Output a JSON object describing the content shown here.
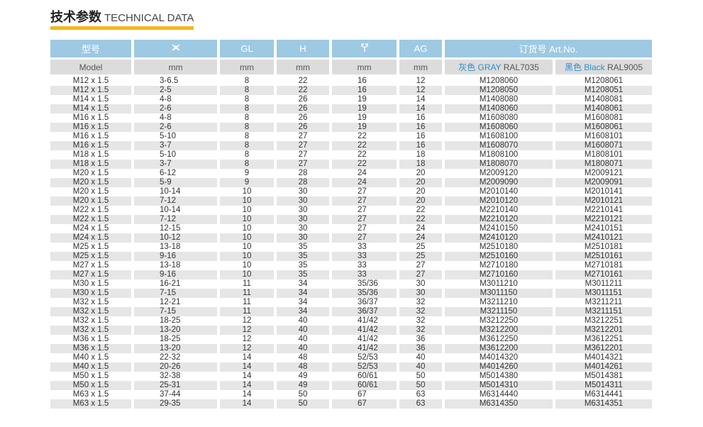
{
  "title": {
    "cn": "技术参数",
    "en": "TECHNICAL DATA"
  },
  "colors": {
    "accent": "#f2b71d",
    "header": "#9ec9e3"
  },
  "header": {
    "row1": {
      "model": "型号",
      "range_icon": "cable-range-icon",
      "gl": "GL",
      "h": "H",
      "wrench_icon": "wrench-icon",
      "ag": "AG",
      "artno": "订货号 Art.No."
    },
    "row2": {
      "model": "Model",
      "range": "mm",
      "gl": "mm",
      "h": "mm",
      "wrench": "mm",
      "ag": "mm",
      "gray_cn": "灰色 GRAY",
      "gray_ral": "RAL7035",
      "black_cn": "黑色 Black",
      "black_ral": "RAL9005"
    }
  },
  "rows": [
    [
      "M12 x 1.5",
      "3-6.5",
      "8",
      "22",
      "16",
      "12",
      "M1208060",
      "M1208061"
    ],
    [
      "M12 x 1.5",
      "2-5",
      "8",
      "22",
      "16",
      "12",
      "M1208050",
      "M1208051"
    ],
    [
      "M14 x 1.5",
      "4-8",
      "8",
      "26",
      "19",
      "14",
      "M1408080",
      "M1408081"
    ],
    [
      "M14 x 1.5",
      "2-6",
      "8",
      "26",
      "19",
      "14",
      "M1408060",
      "M1408061"
    ],
    [
      "M16 x 1.5",
      "4-8",
      "8",
      "26",
      "19",
      "16",
      "M1608080",
      "M1608081"
    ],
    [
      "M16 x 1.5",
      "2-6",
      "8",
      "26",
      "19",
      "16",
      "M1608060",
      "M1608061"
    ],
    [
      "M16 x 1.5",
      "5-10",
      "8",
      "27",
      "22",
      "16",
      "M1608100",
      "M1608101"
    ],
    [
      "M16 x 1.5",
      "3-7",
      "8",
      "27",
      "22",
      "16",
      "M1608070",
      "M1608071"
    ],
    [
      "M18 x 1.5",
      "5-10",
      "8",
      "27",
      "22",
      "18",
      "M1808100",
      "M1808101"
    ],
    [
      "M18 x 1.5",
      "3-7",
      "8",
      "27",
      "22",
      "18",
      "M1808070",
      "M1808071"
    ],
    [
      "M20 x 1.5",
      "6-12",
      "9",
      "28",
      "24",
      "20",
      "M2009120",
      "M2009121"
    ],
    [
      "M20 x 1.5",
      "5-9",
      "9",
      "28",
      "24",
      "20",
      "M2009090",
      "M2009091"
    ],
    [
      "M20 x 1.5",
      "10-14",
      "10",
      "30",
      "27",
      "20",
      "M2010140",
      "M2010141"
    ],
    [
      "M20 x 1.5",
      "7-12",
      "10",
      "30",
      "27",
      "20",
      "M2010120",
      "M2010121"
    ],
    [
      "M22 x 1.5",
      "10-14",
      "10",
      "30",
      "27",
      "22",
      "M2210140",
      "M2210141"
    ],
    [
      "M22 x 1.5",
      "7-12",
      "10",
      "30",
      "27",
      "22",
      "M2210120",
      "M2210121"
    ],
    [
      "M24 x 1.5",
      "12-15",
      "10",
      "30",
      "27",
      "24",
      "M2410150",
      "M2410151"
    ],
    [
      "M24 x 1.5",
      "10-12",
      "10",
      "30",
      "27",
      "24",
      "M2410120",
      "M2410121"
    ],
    [
      "M25 x 1.5",
      "13-18",
      "10",
      "35",
      "33",
      "25",
      "M2510180",
      "M2510181"
    ],
    [
      "M25 x 1.5",
      "9-16",
      "10",
      "35",
      "33",
      "25",
      "M2510160",
      "M2510161"
    ],
    [
      "M27 x 1.5",
      "13-18",
      "10",
      "35",
      "33",
      "27",
      "M2710180",
      "M2710181"
    ],
    [
      "M27 x 1.5",
      "9-16",
      "10",
      "35",
      "33",
      "27",
      "M2710160",
      "M2710161"
    ],
    [
      "M30 x 1.5",
      "16-21",
      "11",
      "34",
      "35/36",
      "30",
      "M3011210",
      "M3011211"
    ],
    [
      "M30 x 1.5",
      "7-15",
      "11",
      "34",
      "35/36",
      "30",
      "M3011150",
      "M3011151"
    ],
    [
      "M32 x 1.5",
      "12-21",
      "11",
      "34",
      "36/37",
      "32",
      "M3211210",
      "M3211211"
    ],
    [
      "M32 x 1.5",
      "7-15",
      "11",
      "34",
      "36/37",
      "32",
      "M3211150",
      "M3211151"
    ],
    [
      "M32 x 1.5",
      "18-25",
      "12",
      "40",
      "41/42",
      "32",
      "M3212250",
      "M3212251"
    ],
    [
      "M32 x 1.5",
      "13-20",
      "12",
      "40",
      "41/42",
      "32",
      "M3212200",
      "M3212201"
    ],
    [
      "M36 x 1.5",
      "18-25",
      "12",
      "40",
      "41/42",
      "36",
      "M3612250",
      "M3612251"
    ],
    [
      "M36 x 1.5",
      "13-20",
      "12",
      "40",
      "41/42",
      "36",
      "M3612200",
      "M3612201"
    ],
    [
      "M40 x 1.5",
      "22-32",
      "14",
      "48",
      "52/53",
      "40",
      "M4014320",
      "M4014321"
    ],
    [
      "M40 x 1.5",
      "20-26",
      "14",
      "48",
      "52/53",
      "40",
      "M4014260",
      "M4014261"
    ],
    [
      "M50 x 1.5",
      "32-38",
      "14",
      "49",
      "60/61",
      "50",
      "M5014380",
      "M5014381"
    ],
    [
      "M50 x 1.5",
      "25-31",
      "14",
      "49",
      "60/61",
      "50",
      "M5014310",
      "M5014311"
    ],
    [
      "M63 x 1.5",
      "37-44",
      "14",
      "50",
      "67",
      "63",
      "M6314440",
      "M6314441"
    ],
    [
      "M63 x 1.5",
      "29-35",
      "14",
      "50",
      "67",
      "63",
      "M6314350",
      "M6314351"
    ]
  ]
}
